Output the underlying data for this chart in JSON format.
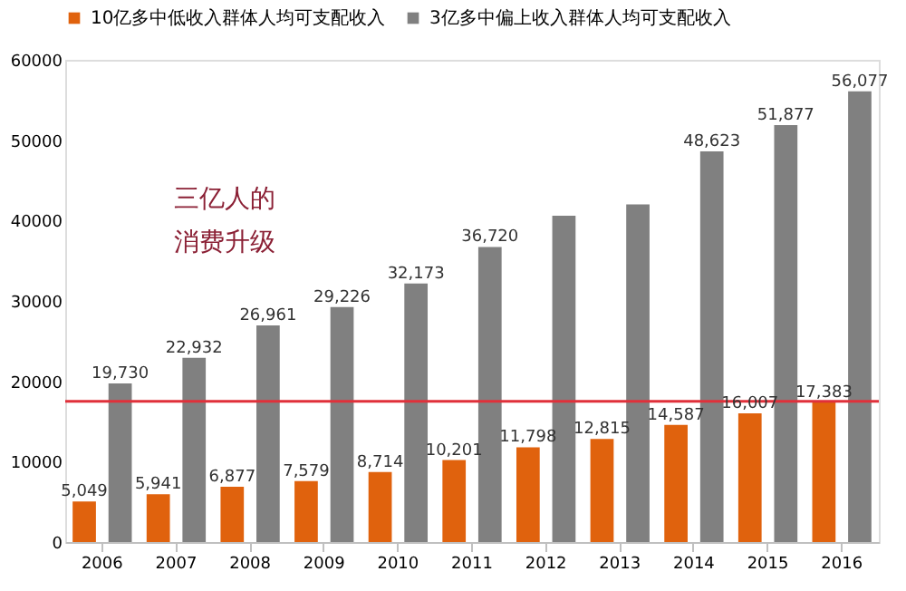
{
  "chart_data": {
    "type": "bar",
    "categories": [
      "2006",
      "2007",
      "2008",
      "2009",
      "2010",
      "2011",
      "2012",
      "2013",
      "2014",
      "2015",
      "2016"
    ],
    "series": [
      {
        "name": "10亿多中低收入群体人均可支配收入",
        "color": "#e0620d",
        "values": [
          5049,
          5941,
          6877,
          7579,
          8714,
          10201,
          11798,
          12815,
          14587,
          16007,
          17383
        ],
        "value_labels": [
          "5,049",
          "5,941",
          "6,877",
          "7,579",
          "8,714",
          "10,201",
          "11,798",
          "12,815",
          "14,587",
          "16,007",
          "17,383"
        ]
      },
      {
        "name": "3亿多中偏上收入群体人均可支配收入",
        "color": "#808080",
        "values": [
          19730,
          22932,
          26961,
          29226,
          32173,
          36720,
          40600,
          42000,
          48623,
          51877,
          56077
        ],
        "value_labels": [
          "19,730",
          "22,932",
          "26,961",
          "29,226",
          "32,173",
          "36,720",
          null,
          null,
          "48,623",
          "51,877",
          "56,077"
        ]
      }
    ],
    "ylim": [
      0,
      60000
    ],
    "yticks": [
      0,
      10000,
      20000,
      30000,
      40000,
      50000,
      60000
    ],
    "ref_lines": [
      {
        "axis": "y",
        "value": 17500,
        "color": "#e0303a"
      }
    ],
    "annotations": [
      "三亿人的",
      "消费升级"
    ],
    "grid": false,
    "legend": "top"
  }
}
